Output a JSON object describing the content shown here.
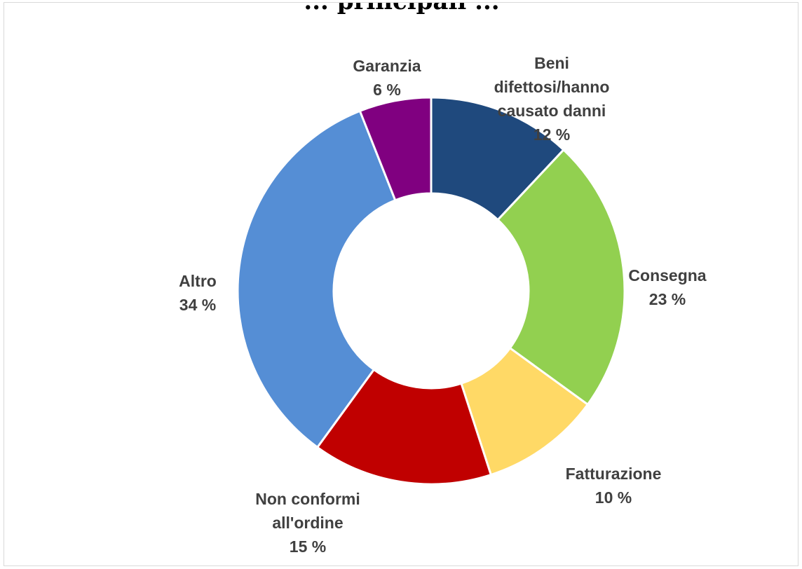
{
  "chart_data": {
    "type": "pie",
    "title": "... principali ...",
    "donut": true,
    "categories": [
      "Beni difettosi/hanno causato danni",
      "Consegna",
      "Fatturazione",
      "Non conformi all'ordine",
      "Altro",
      "Garanzia"
    ],
    "values": [
      12,
      23,
      10,
      15,
      34,
      6
    ],
    "unit": "%",
    "labels": [
      {
        "lines": [
          "Beni",
          "difettosi/hanno",
          "causato danni"
        ],
        "value_text": "12 %"
      },
      {
        "lines": [
          "Consegna"
        ],
        "value_text": "23 %"
      },
      {
        "lines": [
          "Fatturazione"
        ],
        "value_text": "10 %"
      },
      {
        "lines": [
          "Non conformi",
          "all'ordine"
        ],
        "value_text": "15 %"
      },
      {
        "lines": [
          "Altro"
        ],
        "value_text": "34 %"
      },
      {
        "lines": [
          "Garanzia"
        ],
        "value_text": "6 %"
      }
    ],
    "colors": [
      "#1F497D",
      "#92D050",
      "#FFD966",
      "#C00000",
      "#558ED5",
      "#800080"
    ],
    "legend": "none"
  }
}
